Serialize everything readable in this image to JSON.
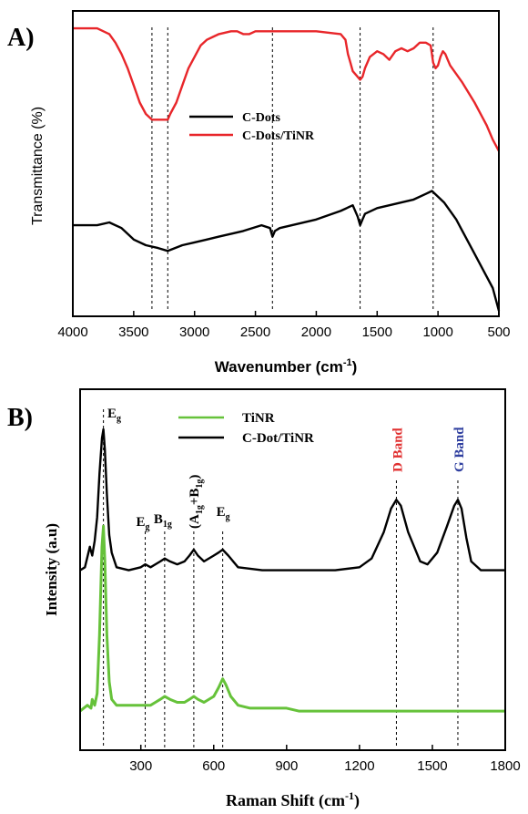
{
  "chart_data": [
    {
      "panel": "A)",
      "type": "line",
      "xlabel": "Wavenumber (cm",
      "xlabel_sup": "-1",
      "xlabel_tail": ")",
      "ylabel": "Transmittance (%)",
      "xlim": [
        4000,
        500
      ],
      "x_reversed": true,
      "ylim": [
        0,
        1
      ],
      "y_ticks_shown": false,
      "xticks": [
        "4000",
        "3500",
        "3000",
        "2500",
        "2000",
        "1500",
        "1000",
        "500"
      ],
      "reference_lines_x": [
        3350,
        3220,
        2360,
        1640,
        1040
      ],
      "legend_position": "center",
      "series": [
        {
          "name": "C-Dots",
          "color": "#000000",
          "x": [
            4000,
            3800,
            3700,
            3600,
            3500,
            3400,
            3300,
            3220,
            3100,
            3000,
            2900,
            2800,
            2600,
            2450,
            2380,
            2360,
            2340,
            2300,
            2200,
            2000,
            1800,
            1700,
            1660,
            1640,
            1620,
            1600,
            1500,
            1400,
            1300,
            1200,
            1100,
            1050,
            1000,
            950,
            900,
            850,
            800,
            700,
            600,
            550,
            500
          ],
          "y": [
            0.3,
            0.3,
            0.31,
            0.29,
            0.25,
            0.23,
            0.22,
            0.21,
            0.23,
            0.24,
            0.25,
            0.26,
            0.28,
            0.3,
            0.29,
            0.26,
            0.28,
            0.29,
            0.3,
            0.32,
            0.35,
            0.37,
            0.33,
            0.3,
            0.32,
            0.34,
            0.36,
            0.37,
            0.38,
            0.39,
            0.41,
            0.42,
            0.4,
            0.38,
            0.35,
            0.32,
            0.28,
            0.2,
            0.12,
            0.08,
            0.0
          ]
        },
        {
          "name": "C-Dots/TiNR",
          "color": "#e8262a",
          "x": [
            4000,
            3800,
            3700,
            3650,
            3600,
            3550,
            3500,
            3450,
            3400,
            3350,
            3300,
            3250,
            3220,
            3200,
            3150,
            3100,
            3050,
            3000,
            2950,
            2900,
            2850,
            2800,
            2700,
            2650,
            2600,
            2550,
            2500,
            2450,
            2400,
            2300,
            2200,
            2000,
            1800,
            1760,
            1740,
            1720,
            1700,
            1680,
            1660,
            1640,
            1620,
            1600,
            1560,
            1500,
            1450,
            1400,
            1350,
            1300,
            1250,
            1200,
            1150,
            1100,
            1060,
            1040,
            1020,
            1000,
            980,
            960,
            940,
            920,
            900,
            850,
            800,
            700,
            600,
            550,
            500
          ],
          "y": [
            0.99,
            0.99,
            0.97,
            0.94,
            0.9,
            0.85,
            0.79,
            0.73,
            0.69,
            0.67,
            0.67,
            0.67,
            0.67,
            0.69,
            0.73,
            0.79,
            0.85,
            0.89,
            0.93,
            0.95,
            0.96,
            0.97,
            0.98,
            0.98,
            0.97,
            0.97,
            0.98,
            0.98,
            0.98,
            0.98,
            0.98,
            0.98,
            0.97,
            0.95,
            0.9,
            0.87,
            0.84,
            0.83,
            0.82,
            0.81,
            0.82,
            0.85,
            0.89,
            0.91,
            0.9,
            0.88,
            0.91,
            0.92,
            0.91,
            0.92,
            0.94,
            0.94,
            0.93,
            0.87,
            0.85,
            0.86,
            0.89,
            0.91,
            0.9,
            0.88,
            0.86,
            0.83,
            0.8,
            0.73,
            0.65,
            0.6,
            0.56
          ]
        }
      ]
    },
    {
      "panel": "B)",
      "type": "line",
      "xlabel": "Raman Shift (cm",
      "xlabel_sup": "-1",
      "xlabel_tail": ")",
      "ylabel": "Intensity (a.u)",
      "xlim": [
        50,
        1800
      ],
      "ylim": [
        0,
        1
      ],
      "y_ticks_shown": false,
      "xticks": [
        "300",
        "600",
        "900",
        "1200",
        "1500",
        "1800"
      ],
      "xtick_values": [
        300,
        600,
        900,
        1200,
        1500,
        1800
      ],
      "legend_position": "top-center",
      "reference_lines_x": [
        146,
        318,
        398,
        518,
        637,
        1352,
        1605
      ],
      "annotations": [
        {
          "x": 146,
          "base": "E",
          "sub": "g",
          "color": "#000000",
          "rotated": false
        },
        {
          "x": 318,
          "base": "E",
          "sub": "g",
          "color": "#000000",
          "rotated": false
        },
        {
          "x": 398,
          "base": "B",
          "sub": "1g",
          "color": "#000000",
          "rotated": false
        },
        {
          "x": 518,
          "base": "(A",
          "sub": "1g",
          "mid": "+B",
          "sub2": "1g",
          "tail": ")",
          "color": "#000000",
          "rotated": true
        },
        {
          "x": 637,
          "base": "E",
          "sub": "g",
          "color": "#000000",
          "rotated": false
        },
        {
          "x": 1352,
          "base": "D Band",
          "color": "#e03030",
          "rotated": true
        },
        {
          "x": 1605,
          "base": "G Band",
          "color": "#3040a0",
          "rotated": true
        }
      ],
      "series": [
        {
          "name": "TiNR",
          "color": "#66c23a",
          "x": [
            50,
            80,
            95,
            100,
            110,
            120,
            130,
            140,
            146,
            152,
            160,
            170,
            180,
            200,
            250,
            300,
            320,
            340,
            360,
            380,
            398,
            420,
            450,
            480,
            500,
            518,
            535,
            560,
            600,
            620,
            637,
            650,
            670,
            700,
            750,
            800,
            900,
            950,
            1000,
            1200,
            1500,
            1800
          ],
          "y": [
            0.04,
            0.06,
            0.05,
            0.08,
            0.06,
            0.1,
            0.3,
            0.6,
            0.67,
            0.55,
            0.3,
            0.14,
            0.08,
            0.06,
            0.06,
            0.06,
            0.06,
            0.06,
            0.07,
            0.08,
            0.09,
            0.08,
            0.07,
            0.07,
            0.08,
            0.09,
            0.08,
            0.07,
            0.09,
            0.12,
            0.15,
            0.13,
            0.09,
            0.06,
            0.05,
            0.05,
            0.05,
            0.04,
            0.04,
            0.04,
            0.04,
            0.04
          ]
        },
        {
          "name": "C-Dot/TiNR",
          "color": "#000000",
          "x": [
            50,
            70,
            90,
            100,
            110,
            120,
            130,
            140,
            146,
            152,
            160,
            170,
            180,
            200,
            250,
            300,
            318,
            340,
            360,
            380,
            398,
            420,
            450,
            480,
            500,
            518,
            535,
            560,
            600,
            620,
            637,
            660,
            700,
            800,
            1000,
            1100,
            1200,
            1250,
            1300,
            1330,
            1352,
            1370,
            1400,
            1450,
            1480,
            1520,
            1560,
            1590,
            1605,
            1620,
            1640,
            1660,
            1700,
            1750,
            1800
          ],
          "y": [
            0.52,
            0.53,
            0.6,
            0.57,
            0.62,
            0.7,
            0.85,
            0.97,
            1.0,
            0.93,
            0.78,
            0.64,
            0.58,
            0.53,
            0.52,
            0.53,
            0.54,
            0.53,
            0.54,
            0.55,
            0.56,
            0.55,
            0.54,
            0.55,
            0.57,
            0.59,
            0.57,
            0.55,
            0.57,
            0.58,
            0.59,
            0.57,
            0.53,
            0.52,
            0.52,
            0.52,
            0.53,
            0.56,
            0.65,
            0.73,
            0.76,
            0.74,
            0.65,
            0.55,
            0.54,
            0.58,
            0.67,
            0.74,
            0.76,
            0.73,
            0.63,
            0.55,
            0.52,
            0.52,
            0.52
          ]
        }
      ]
    }
  ]
}
